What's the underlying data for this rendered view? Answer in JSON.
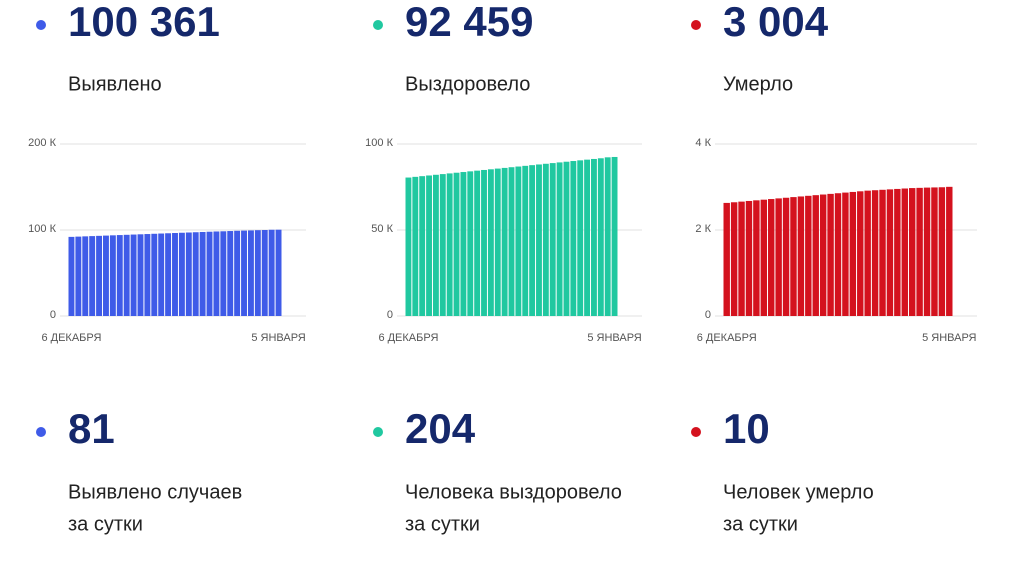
{
  "chart_data": [
    {
      "type": "bar",
      "color": "#3f5be8",
      "categories": [
        "6 ДЕКАБРЯ",
        null,
        null,
        null,
        null,
        null,
        null,
        null,
        null,
        null,
        null,
        null,
        null,
        null,
        null,
        null,
        null,
        null,
        null,
        null,
        null,
        null,
        null,
        null,
        null,
        null,
        null,
        null,
        null,
        null,
        "5 ЯНВАРЯ"
      ],
      "values": [
        92000,
        92300,
        92600,
        92900,
        93200,
        93500,
        93800,
        94100,
        94400,
        94700,
        95000,
        95300,
        95600,
        95900,
        96200,
        96500,
        96800,
        97100,
        97400,
        97700,
        98000,
        98300,
        98500,
        98800,
        99100,
        99300,
        99500,
        99800,
        100000,
        100280,
        100361
      ],
      "ylim": [
        0,
        200000
      ],
      "yticks": [
        0,
        {
          "value": 100000,
          "label": "100 К"
        },
        {
          "value": 200000,
          "label": "200 К"
        }
      ],
      "grid": true
    },
    {
      "type": "bar",
      "color": "#20c8a0",
      "categories": [
        "6 ДЕКАБРЯ",
        null,
        null,
        null,
        null,
        null,
        null,
        null,
        null,
        null,
        null,
        null,
        null,
        null,
        null,
        null,
        null,
        null,
        null,
        null,
        null,
        null,
        null,
        null,
        null,
        null,
        null,
        null,
        null,
        null,
        "5 ЯНВАРЯ"
      ],
      "values": [
        80500,
        80900,
        81300,
        81700,
        82100,
        82500,
        82900,
        83300,
        83700,
        84100,
        84500,
        84900,
        85300,
        85700,
        86100,
        86500,
        86900,
        87300,
        87700,
        88100,
        88500,
        88900,
        89300,
        89700,
        90100,
        90500,
        90900,
        91300,
        91700,
        92255,
        92459
      ],
      "ylim": [
        0,
        100000
      ],
      "yticks": [
        0,
        {
          "value": 50000,
          "label": "50 К"
        },
        {
          "value": 100000,
          "label": "100 К"
        }
      ],
      "grid": true
    },
    {
      "type": "bar",
      "color": "#d4121e",
      "categories": [
        "6 ДЕКАБРЯ",
        null,
        null,
        null,
        null,
        null,
        null,
        null,
        null,
        null,
        null,
        null,
        null,
        null,
        null,
        null,
        null,
        null,
        null,
        null,
        null,
        null,
        null,
        null,
        null,
        null,
        null,
        null,
        null,
        null,
        "5 ЯНВАРЯ"
      ],
      "values": [
        2630,
        2645,
        2660,
        2675,
        2690,
        2705,
        2720,
        2735,
        2750,
        2765,
        2780,
        2795,
        2810,
        2825,
        2840,
        2855,
        2870,
        2885,
        2900,
        2915,
        2925,
        2935,
        2945,
        2955,
        2965,
        2975,
        2980,
        2986,
        2990,
        2994,
        3004
      ],
      "ylim": [
        0,
        4000
      ],
      "yticks": [
        0,
        {
          "value": 2000,
          "label": "2 К"
        },
        {
          "value": 4000,
          "label": "4 К"
        }
      ],
      "grid": true
    }
  ],
  "stats": [
    {
      "value": "100 361",
      "label": "Выявлено"
    },
    {
      "value": "92 459",
      "label": "Выздоровело"
    },
    {
      "value": "3 004",
      "label": "Умерло"
    }
  ],
  "daily": [
    {
      "value": "81",
      "lines": [
        "Выявлено случаев",
        "за сутки"
      ]
    },
    {
      "value": "204",
      "lines": [
        "Человека выздоровело",
        "за сутки"
      ]
    },
    {
      "value": "10",
      "lines": [
        "Человек умерло",
        "за сутки"
      ]
    }
  ]
}
